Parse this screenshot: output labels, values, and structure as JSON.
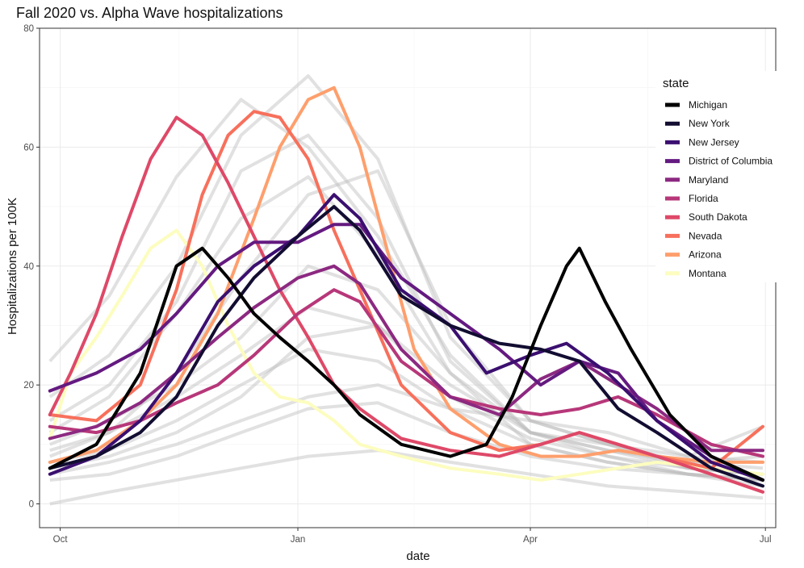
{
  "chart_data": {
    "type": "line",
    "title": "Fall 2020 vs. Alpha Wave hospitalizations",
    "xlabel": "date",
    "ylabel": "Hospitalizations per 100K",
    "xlim": [
      "2020-09-23",
      "2021-07-05"
    ],
    "ylim": [
      -4,
      80
    ],
    "x_ticks": [
      {
        "date": "2020-10-01",
        "label": "Oct"
      },
      {
        "date": "2021-01-01",
        "label": "Jan"
      },
      {
        "date": "2021-04-01",
        "label": "Apr"
      },
      {
        "date": "2021-07-01",
        "label": "Jul"
      }
    ],
    "y_ticks": [
      0,
      20,
      40,
      60,
      80
    ],
    "grid": true,
    "legend": {
      "title": "state",
      "position": "right"
    },
    "background_series": {
      "color": "#bdbdbd",
      "note_count": 12,
      "series": [
        {
          "x": [
            "2020-09-27",
            "2020-10-20",
            "2020-11-15",
            "2020-12-10",
            "2021-01-05",
            "2021-02-01",
            "2021-03-01",
            "2021-04-01",
            "2021-05-01",
            "2021-06-01",
            "2021-06-30"
          ],
          "y": [
            24,
            35,
            55,
            68,
            60,
            45,
            25,
            12,
            8,
            5,
            4
          ]
        },
        {
          "x": [
            "2020-09-27",
            "2020-10-20",
            "2020-11-15",
            "2020-12-10",
            "2021-01-05",
            "2021-02-01",
            "2021-03-01",
            "2021-04-01",
            "2021-05-01",
            "2021-06-01",
            "2021-06-30"
          ],
          "y": [
            12,
            18,
            32,
            48,
            55,
            42,
            22,
            10,
            7,
            5,
            4
          ]
        },
        {
          "x": [
            "2020-09-27",
            "2020-10-20",
            "2020-11-15",
            "2020-12-10",
            "2021-01-05",
            "2021-02-01",
            "2021-03-01",
            "2021-04-01",
            "2021-05-01",
            "2021-06-01",
            "2021-06-30"
          ],
          "y": [
            8,
            12,
            22,
            38,
            52,
            56,
            30,
            14,
            10,
            6,
            5
          ]
        },
        {
          "x": [
            "2020-09-27",
            "2020-10-20",
            "2020-11-15",
            "2020-12-10",
            "2021-01-05",
            "2021-02-01",
            "2021-03-01",
            "2021-04-01",
            "2021-05-01",
            "2021-06-01",
            "2021-06-30"
          ],
          "y": [
            10,
            14,
            20,
            28,
            40,
            36,
            22,
            12,
            9,
            6,
            5
          ]
        },
        {
          "x": [
            "2020-09-27",
            "2020-10-20",
            "2020-11-15",
            "2020-12-10",
            "2021-01-05",
            "2021-02-01",
            "2021-03-01",
            "2021-04-01",
            "2021-05-01",
            "2021-06-01",
            "2021-06-30"
          ],
          "y": [
            6,
            8,
            12,
            18,
            28,
            30,
            20,
            12,
            10,
            7,
            6
          ]
        },
        {
          "x": [
            "2020-09-27",
            "2020-10-20",
            "2020-11-15",
            "2020-12-10",
            "2021-01-05",
            "2021-02-01",
            "2021-03-01",
            "2021-04-01",
            "2021-05-01",
            "2021-06-01",
            "2021-06-30"
          ],
          "y": [
            4,
            5,
            8,
            12,
            16,
            17,
            12,
            8,
            6,
            5,
            4
          ]
        },
        {
          "x": [
            "2020-09-27",
            "2020-10-20",
            "2020-11-15",
            "2020-12-10",
            "2021-01-05",
            "2021-02-01",
            "2021-03-01",
            "2021-04-01",
            "2021-05-01",
            "2021-06-01",
            "2021-06-30"
          ],
          "y": [
            0,
            2,
            4,
            6,
            8,
            9,
            7,
            5,
            3,
            2,
            1
          ]
        },
        {
          "x": [
            "2020-09-27",
            "2020-10-20",
            "2020-11-15",
            "2020-12-10",
            "2021-01-05",
            "2021-02-01",
            "2021-03-01",
            "2021-04-01",
            "2021-05-01",
            "2021-06-01",
            "2021-06-30"
          ],
          "y": [
            14,
            20,
            34,
            56,
            62,
            48,
            24,
            12,
            9,
            7,
            8
          ]
        },
        {
          "x": [
            "2020-09-27",
            "2020-10-20",
            "2020-11-15",
            "2020-12-10",
            "2021-01-05",
            "2021-02-01",
            "2021-03-01",
            "2021-04-01",
            "2021-05-01",
            "2021-06-01",
            "2021-06-30"
          ],
          "y": [
            18,
            25,
            40,
            62,
            72,
            58,
            28,
            14,
            10,
            8,
            13
          ]
        },
        {
          "x": [
            "2020-09-27",
            "2020-10-20",
            "2020-11-15",
            "2020-12-10",
            "2021-01-05",
            "2021-02-01",
            "2021-03-01",
            "2021-04-01",
            "2021-05-01",
            "2021-06-01",
            "2021-06-30"
          ],
          "y": [
            9,
            12,
            18,
            25,
            33,
            30,
            18,
            11,
            8,
            6,
            5
          ]
        },
        {
          "x": [
            "2020-09-27",
            "2020-10-20",
            "2020-11-15",
            "2020-12-10",
            "2021-01-05",
            "2021-02-01",
            "2021-03-01",
            "2021-04-01",
            "2021-05-01",
            "2021-06-01",
            "2021-06-30"
          ],
          "y": [
            7,
            9,
            14,
            20,
            26,
            24,
            16,
            14,
            12,
            8,
            7
          ]
        },
        {
          "x": [
            "2020-09-27",
            "2020-10-20",
            "2020-11-15",
            "2020-12-10",
            "2021-01-05",
            "2021-02-01",
            "2021-03-01",
            "2021-04-01",
            "2021-05-01",
            "2021-06-01",
            "2021-06-30"
          ],
          "y": [
            5,
            7,
            10,
            14,
            18,
            20,
            16,
            10,
            7,
            5,
            3
          ]
        }
      ]
    },
    "series": [
      {
        "name": "Michigan",
        "color": "#000000",
        "x": [
          "2020-09-27",
          "2020-10-15",
          "2020-11-01",
          "2020-11-15",
          "2020-11-25",
          "2020-12-05",
          "2020-12-15",
          "2020-12-25",
          "2021-01-05",
          "2021-01-15",
          "2021-01-25",
          "2021-02-10",
          "2021-03-01",
          "2021-03-15",
          "2021-03-25",
          "2021-04-05",
          "2021-04-15",
          "2021-04-20",
          "2021-04-30",
          "2021-05-10",
          "2021-05-25",
          "2021-06-10",
          "2021-06-20",
          "2021-06-30"
        ],
        "y": [
          6,
          10,
          22,
          40,
          43,
          38,
          32,
          28,
          24,
          20,
          15,
          10,
          8,
          10,
          18,
          30,
          40,
          43,
          34,
          26,
          15,
          8,
          6,
          4
        ]
      },
      {
        "name": "New York",
        "color": "#120d31",
        "x": [
          "2020-09-27",
          "2020-10-15",
          "2020-11-01",
          "2020-11-15",
          "2020-12-01",
          "2020-12-15",
          "2021-01-01",
          "2021-01-15",
          "2021-01-25",
          "2021-02-10",
          "2021-03-01",
          "2021-03-20",
          "2021-04-05",
          "2021-04-20",
          "2021-05-05",
          "2021-05-20",
          "2021-06-10",
          "2021-06-30"
        ],
        "y": [
          6,
          8,
          12,
          18,
          30,
          38,
          45,
          50,
          46,
          35,
          30,
          27,
          26,
          24,
          16,
          12,
          6,
          3
        ]
      },
      {
        "name": "New Jersey",
        "color": "#3b0f70",
        "x": [
          "2020-09-27",
          "2020-10-15",
          "2020-11-01",
          "2020-11-15",
          "2020-12-01",
          "2020-12-15",
          "2021-01-01",
          "2021-01-15",
          "2021-01-25",
          "2021-02-10",
          "2021-03-01",
          "2021-03-15",
          "2021-04-01",
          "2021-04-15",
          "2021-05-01",
          "2021-05-20",
          "2021-06-10",
          "2021-06-30"
        ],
        "y": [
          5,
          8,
          14,
          22,
          34,
          40,
          45,
          52,
          48,
          36,
          30,
          22,
          25,
          27,
          22,
          14,
          7,
          4
        ]
      },
      {
        "name": "District of Columbia",
        "color": "#641a80",
        "x": [
          "2020-09-27",
          "2020-10-15",
          "2020-11-01",
          "2020-11-15",
          "2020-12-01",
          "2020-12-15",
          "2021-01-01",
          "2021-01-15",
          "2021-01-25",
          "2021-02-10",
          "2021-03-01",
          "2021-03-20",
          "2021-04-05",
          "2021-04-20",
          "2021-05-05",
          "2021-05-20",
          "2021-06-10",
          "2021-06-30"
        ],
        "y": [
          19,
          22,
          26,
          32,
          40,
          44,
          44,
          47,
          47,
          38,
          32,
          26,
          20,
          24,
          22,
          14,
          8,
          4
        ]
      },
      {
        "name": "Maryland",
        "color": "#8c2981",
        "x": [
          "2020-09-27",
          "2020-10-15",
          "2020-11-01",
          "2020-11-15",
          "2020-12-01",
          "2020-12-15",
          "2021-01-01",
          "2021-01-15",
          "2021-01-25",
          "2021-02-10",
          "2021-03-01",
          "2021-03-20",
          "2021-04-05",
          "2021-04-20",
          "2021-05-05",
          "2021-05-20",
          "2021-06-10",
          "2021-06-30"
        ],
        "y": [
          11,
          13,
          17,
          22,
          28,
          33,
          38,
          40,
          37,
          26,
          18,
          15,
          21,
          24,
          20,
          16,
          9,
          9
        ]
      },
      {
        "name": "Florida",
        "color": "#b73779",
        "x": [
          "2020-09-27",
          "2020-10-15",
          "2020-11-01",
          "2020-11-15",
          "2020-12-01",
          "2020-12-15",
          "2021-01-01",
          "2021-01-15",
          "2021-01-25",
          "2021-02-10",
          "2021-03-01",
          "2021-03-20",
          "2021-04-05",
          "2021-04-20",
          "2021-05-05",
          "2021-05-20",
          "2021-06-10",
          "2021-06-30"
        ],
        "y": [
          13,
          12,
          14,
          17,
          20,
          25,
          32,
          36,
          34,
          24,
          18,
          16,
          15,
          16,
          18,
          15,
          10,
          8
        ]
      },
      {
        "name": "South Dakota",
        "color": "#de4968",
        "x": [
          "2020-09-27",
          "2020-10-05",
          "2020-10-15",
          "2020-10-25",
          "2020-11-05",
          "2020-11-15",
          "2020-11-25",
          "2020-12-05",
          "2020-12-15",
          "2020-12-25",
          "2021-01-05",
          "2021-01-15",
          "2021-01-25",
          "2021-02-10",
          "2021-03-01",
          "2021-03-20",
          "2021-04-05",
          "2021-04-20",
          "2021-05-05",
          "2021-05-20",
          "2021-06-10",
          "2021-06-30"
        ],
        "y": [
          15,
          22,
          32,
          45,
          58,
          65,
          62,
          54,
          45,
          36,
          28,
          20,
          16,
          11,
          9,
          8,
          10,
          12,
          10,
          8,
          5,
          2
        ]
      },
      {
        "name": "Nevada",
        "color": "#f7705c",
        "x": [
          "2020-09-27",
          "2020-10-15",
          "2020-11-01",
          "2020-11-15",
          "2020-11-25",
          "2020-12-05",
          "2020-12-15",
          "2020-12-25",
          "2021-01-05",
          "2021-01-15",
          "2021-01-25",
          "2021-02-10",
          "2021-03-01",
          "2021-03-20",
          "2021-04-05",
          "2021-04-20",
          "2021-05-05",
          "2021-05-20",
          "2021-06-10",
          "2021-06-30"
        ],
        "y": [
          15,
          14,
          20,
          36,
          52,
          62,
          66,
          65,
          58,
          46,
          36,
          20,
          12,
          9,
          10,
          12,
          10,
          8,
          6,
          13
        ]
      },
      {
        "name": "Arizona",
        "color": "#fe9f6d",
        "x": [
          "2020-09-27",
          "2020-10-15",
          "2020-11-01",
          "2020-11-15",
          "2020-12-01",
          "2020-12-15",
          "2020-12-25",
          "2021-01-05",
          "2021-01-15",
          "2021-01-25",
          "2021-02-05",
          "2021-02-15",
          "2021-03-01",
          "2021-03-20",
          "2021-04-05",
          "2021-04-20",
          "2021-05-05",
          "2021-05-20",
          "2021-06-10",
          "2021-06-30"
        ],
        "y": [
          7,
          9,
          14,
          20,
          32,
          48,
          60,
          68,
          70,
          60,
          42,
          26,
          16,
          10,
          8,
          8,
          9,
          8,
          7,
          7
        ]
      },
      {
        "name": "Montana",
        "color": "#fcfdbf",
        "x": [
          "2020-09-27",
          "2020-10-05",
          "2020-10-15",
          "2020-10-25",
          "2020-11-05",
          "2020-11-15",
          "2020-11-25",
          "2020-12-05",
          "2020-12-15",
          "2020-12-25",
          "2021-01-05",
          "2021-01-15",
          "2021-01-25",
          "2021-02-10",
          "2021-03-01",
          "2021-03-20",
          "2021-04-05",
          "2021-04-20",
          "2021-05-05",
          "2021-05-20",
          "2021-06-10",
          "2021-06-30"
        ],
        "y": [
          11,
          22,
          28,
          35,
          43,
          46,
          40,
          30,
          22,
          18,
          17,
          14,
          10,
          8,
          6,
          5,
          4,
          5,
          6,
          7,
          6,
          5
        ]
      }
    ]
  }
}
